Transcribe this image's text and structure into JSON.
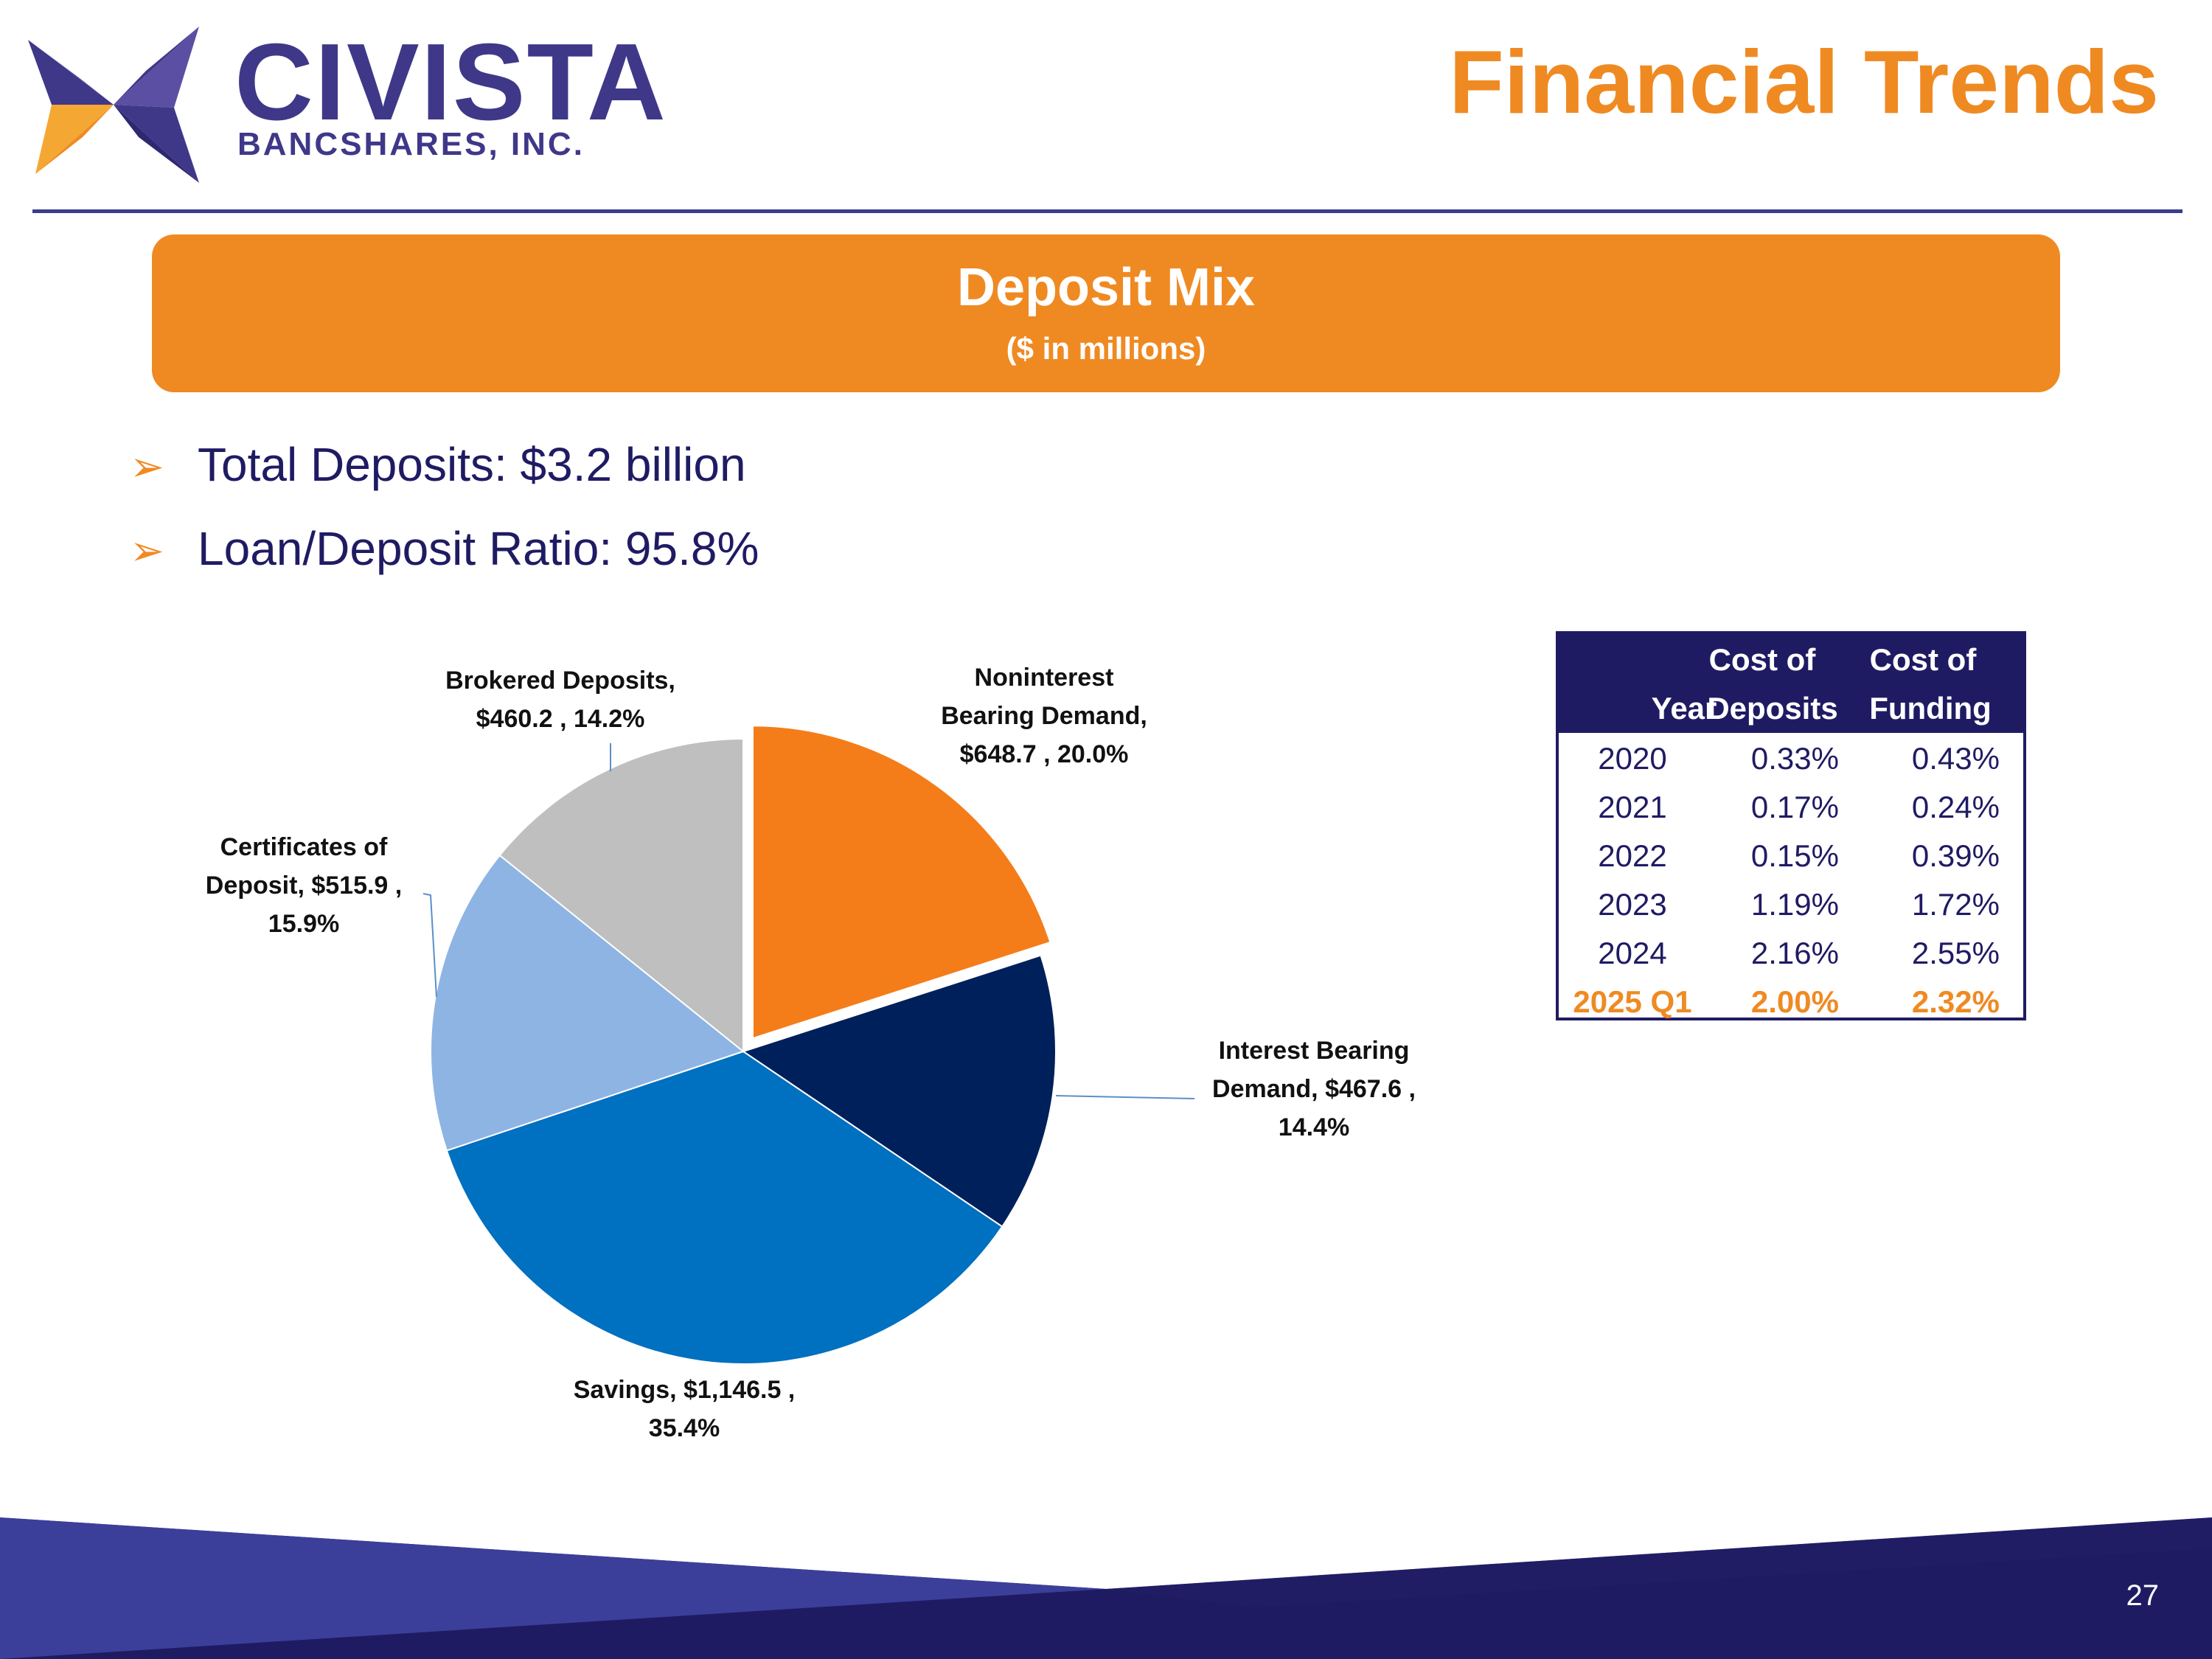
{
  "header": {
    "logo_text": "CIVISTA",
    "logo_subtext": "BANCSHARES, INC.",
    "title": "Financial Trends"
  },
  "banner": {
    "title": "Deposit Mix",
    "subtitle": "($ in millions)"
  },
  "bullets": [
    {
      "text": "Total Deposits: $3.2 billion"
    },
    {
      "text": "Loan/Deposit Ratio: 95.8%"
    }
  ],
  "chart_data": {
    "type": "pie",
    "title": "Deposit Mix",
    "unit": "$ in millions",
    "slices": [
      {
        "name": "Noninterest Bearing Demand",
        "value": 648.7,
        "percent": 20.0,
        "color": "#f47d1a",
        "exploded": true,
        "label_lines": [
          "Noninterest",
          "Bearing Demand,",
          "$648.7 , 20.0%"
        ]
      },
      {
        "name": "Interest Bearing Demand",
        "value": 467.6,
        "percent": 14.4,
        "color": "#00205b",
        "label_lines": [
          "Interest Bearing",
          "Demand, $467.6 ,",
          "14.4%"
        ]
      },
      {
        "name": "Savings",
        "value": 1146.5,
        "percent": 35.4,
        "color": "#0070c0",
        "label_lines": [
          "Savings, $1,146.5 ,",
          "35.4%"
        ]
      },
      {
        "name": "Certificates of Deposit",
        "value": 515.9,
        "percent": 15.9,
        "color": "#8eb4e3",
        "label_lines": [
          "Certificates of",
          "Deposit, $515.9 ,",
          "15.9%"
        ]
      },
      {
        "name": "Brokered Deposits",
        "value": 460.2,
        "percent": 14.2,
        "color": "#bfbfbf",
        "label_lines": [
          "Brokered Deposits,",
          "$460.2 , 14.2%"
        ]
      }
    ]
  },
  "cost_table": {
    "headers": [
      {
        "line1": "",
        "line2": "Year"
      },
      {
        "line1": "Cost of",
        "line2": "Deposits"
      },
      {
        "line1": "Cost of",
        "line2": "Funding"
      }
    ],
    "rows": [
      {
        "year": "2020",
        "deposits": "0.33%",
        "funding": "0.43%",
        "highlight": false
      },
      {
        "year": "2021",
        "deposits": "0.17%",
        "funding": "0.24%",
        "highlight": false
      },
      {
        "year": "2022",
        "deposits": "0.15%",
        "funding": "0.39%",
        "highlight": false
      },
      {
        "year": "2023",
        "deposits": "1.19%",
        "funding": "1.72%",
        "highlight": false
      },
      {
        "year": "2024",
        "deposits": "2.16%",
        "funding": "2.55%",
        "highlight": false
      },
      {
        "year": "2025 Q1",
        "deposits": "2.00%",
        "funding": "2.32%",
        "highlight": true
      }
    ]
  },
  "colors": {
    "brand_orange": "#ef8a22",
    "brand_navy": "#1f1b63",
    "brand_purple": "#3f3889"
  },
  "footer": {
    "page_number": "27"
  }
}
